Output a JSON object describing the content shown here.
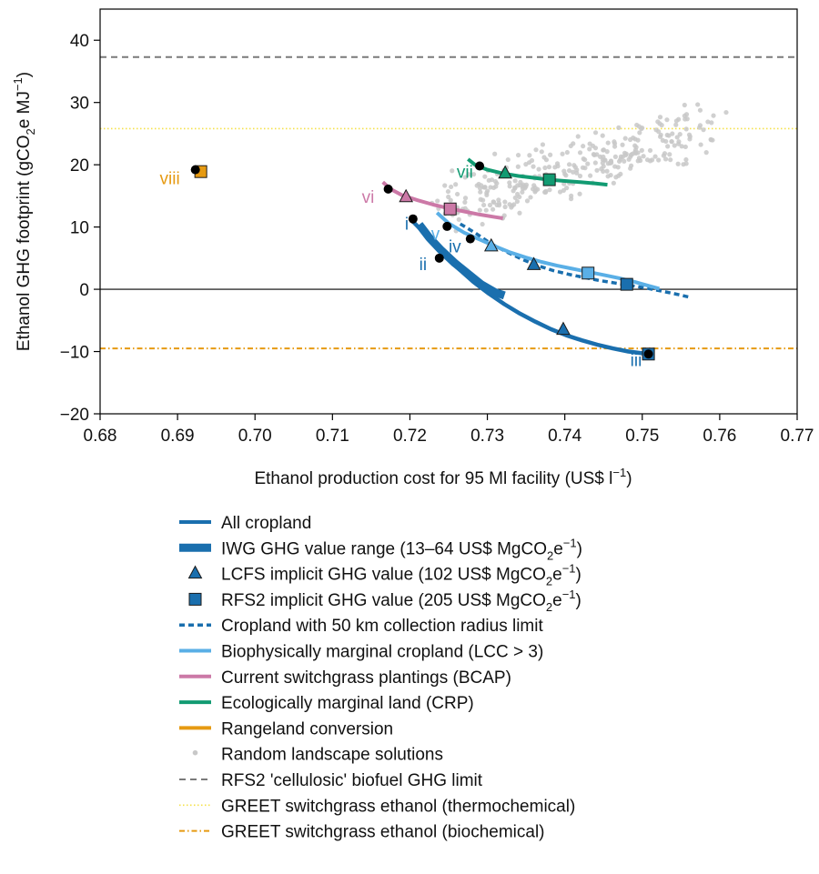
{
  "chart_data": {
    "type": "line",
    "xlabel": "Ethanol production cost for 95 Ml facility (US$ l",
    "xlabel_sup": "−1",
    "xlabel_close": ")",
    "ylabel_pre": "Ethanol GHG footprint (gCO",
    "ylabel_sub": "2",
    "ylabel_mid": "e MJ",
    "ylabel_sup": "−1",
    "ylabel_close": ")",
    "xlim": [
      0.68,
      0.77
    ],
    "ylim": [
      -20,
      45
    ],
    "xticks": [
      0.68,
      0.69,
      0.7,
      0.71,
      0.72,
      0.73,
      0.74,
      0.75,
      0.76,
      0.77
    ],
    "xtick_labels": [
      "0.68",
      "0.69",
      "0.70",
      "0.71",
      "0.72",
      "0.73",
      "0.74",
      "0.75",
      "0.76",
      "0.77"
    ],
    "yticks": [
      -20,
      -10,
      0,
      10,
      20,
      30,
      40
    ],
    "ytick_labels": [
      "−20",
      "−10",
      "0",
      "10",
      "20",
      "30",
      "40"
    ],
    "colors": {
      "cropland": "#1a6fae",
      "marginal_crop": "#5aafe6",
      "bcap": "#cc79a7",
      "crp": "#129b72",
      "rangeland": "#e69a12",
      "random": "#c8c8c8",
      "rfs2_limit": "#7a7a7a",
      "greet_thermo": "#f5e14a",
      "greet_bio": "#e69a12",
      "point": "#000000"
    },
    "reference_lines": [
      {
        "name": "RFS2 'cellulosic' biofuel GHG limit",
        "y": 37.3
      },
      {
        "name": "GREET switchgrass ethanol (thermochemical)",
        "y": 25.8
      },
      {
        "name": "GREET switchgrass ethanol (biochemical)",
        "y": -9.5
      },
      {
        "name": "zero",
        "y": 0
      }
    ],
    "series": [
      {
        "name": "All cropland",
        "x": [
          0.7203,
          0.7222,
          0.7242,
          0.7262,
          0.7282,
          0.7302,
          0.7322,
          0.7342,
          0.7362,
          0.7382,
          0.7402,
          0.7422,
          0.7442,
          0.7462,
          0.7482,
          0.7502,
          0.7508
        ],
        "y": [
          11,
          8.6,
          5.8,
          3.4,
          1.2,
          -0.7,
          -2.4,
          -3.9,
          -5.2,
          -6.4,
          -7.4,
          -8.2,
          -8.9,
          -9.5,
          -10.0,
          -10.3,
          -10.4
        ]
      },
      {
        "name": "IWG GHG value range (13–64 US$ MgCO2e−1)",
        "x": [
          0.7212,
          0.7225,
          0.724,
          0.7258,
          0.7275,
          0.7292,
          0.731,
          0.7322
        ],
        "y": [
          10.4,
          8.3,
          6.3,
          4.2,
          2.5,
          0.8,
          -0.5,
          -1.0
        ]
      },
      {
        "name": "Cropland with 50 km collection radius limit",
        "x": [
          0.7265,
          0.7285,
          0.7305,
          0.7325,
          0.7345,
          0.7365,
          0.7385,
          0.7405,
          0.7425,
          0.7445,
          0.7465,
          0.7485,
          0.7505,
          0.7525,
          0.7545,
          0.7562
        ],
        "y": [
          10.5,
          9.0,
          7.3,
          6.0,
          4.8,
          3.8,
          3.0,
          2.4,
          1.9,
          1.4,
          1.0,
          0.6,
          0.2,
          -0.3,
          -0.8,
          -1.3
        ]
      },
      {
        "name": "Biophysically marginal cropland (LCC > 3)",
        "x": [
          0.7235,
          0.725,
          0.727,
          0.729,
          0.731,
          0.733,
          0.735,
          0.737,
          0.739,
          0.741,
          0.743,
          0.745,
          0.747,
          0.749,
          0.751,
          0.7522
        ],
        "y": [
          12.3,
          10.6,
          9.1,
          8.0,
          6.9,
          5.9,
          5.1,
          4.4,
          3.8,
          3.3,
          2.8,
          2.3,
          1.8,
          1.2,
          0.5,
          0.1
        ]
      },
      {
        "name": "Current switchgrass plantings (BCAP)",
        "x": [
          0.7165,
          0.7175,
          0.719,
          0.721,
          0.723,
          0.725,
          0.727,
          0.729,
          0.731,
          0.732
        ],
        "y": [
          17.2,
          16.1,
          15.1,
          14.3,
          13.6,
          13.0,
          12.5,
          12.0,
          11.6,
          11.4
        ]
      },
      {
        "name": "Ecologically marginal land (CRP)",
        "x": [
          0.7275,
          0.7285,
          0.73,
          0.732,
          0.734,
          0.736,
          0.738,
          0.74,
          0.742,
          0.744,
          0.7455
        ],
        "y": [
          20.9,
          19.9,
          19.2,
          18.6,
          18.2,
          17.9,
          17.6,
          17.4,
          17.2,
          17.0,
          16.8
        ]
      }
    ],
    "markers": {
      "circles": [
        {
          "x": 0.6923,
          "y": 19.2
        },
        {
          "x": 0.7172,
          "y": 16.1
        },
        {
          "x": 0.7204,
          "y": 11.3
        },
        {
          "x": 0.7238,
          "y": 5.0
        },
        {
          "x": 0.7248,
          "y": 10.1
        },
        {
          "x": 0.7278,
          "y": 8.1
        },
        {
          "x": 0.729,
          "y": 19.8
        },
        {
          "x": 0.7508,
          "y": -10.4
        }
      ],
      "triangles": [
        {
          "x": 0.7195,
          "y": 14.8,
          "color": "bcap"
        },
        {
          "x": 0.7323,
          "y": 18.6,
          "color": "crp"
        },
        {
          "x": 0.7305,
          "y": 6.9,
          "color": "marginal_crop"
        },
        {
          "x": 0.736,
          "y": 3.9,
          "color": "cropland"
        },
        {
          "x": 0.7398,
          "y": -6.5,
          "color": "cropland"
        }
      ],
      "squares": [
        {
          "x": 0.693,
          "y": 18.9,
          "color": "rangeland"
        },
        {
          "x": 0.7252,
          "y": 12.9,
          "color": "bcap"
        },
        {
          "x": 0.738,
          "y": 17.6,
          "color": "crp"
        },
        {
          "x": 0.743,
          "y": 2.6,
          "color": "marginal_crop"
        },
        {
          "x": 0.748,
          "y": 0.8,
          "color": "cropland"
        },
        {
          "x": 0.7508,
          "y": -10.4,
          "color": "cropland"
        }
      ]
    },
    "annotations": [
      {
        "text": "i",
        "x": 0.7196,
        "y": 9.6,
        "color": "cropland"
      },
      {
        "text": "ii",
        "x": 0.7217,
        "y": 3.1,
        "color": "cropland"
      },
      {
        "text": "iii",
        "x": 0.7492,
        "y": -12.3,
        "color": "cropland"
      },
      {
        "text": "iv",
        "x": 0.7258,
        "y": 5.9,
        "color": "cropland"
      },
      {
        "text": "v",
        "x": 0.7233,
        "y": 8.0,
        "color": "marginal_crop"
      },
      {
        "text": "vi",
        "x": 0.7146,
        "y": 13.9,
        "color": "bcap"
      },
      {
        "text": "vii",
        "x": 0.7271,
        "y": 17.9,
        "color": "crp"
      },
      {
        "text": "viii",
        "x": 0.689,
        "y": 16.9,
        "color": "rangeland"
      }
    ],
    "random_cloud": {
      "name": "Random landscape solutions",
      "count": 320,
      "seed": 11
    },
    "legend": [
      {
        "label_pre": "All cropland",
        "kind": "line",
        "color": "cropland"
      },
      {
        "label_pre": "IWG GHG value range (13–64 US$ MgCO",
        "label_sub": "2",
        "label_mid": "e",
        "label_sup": "−1",
        "label_post": ")",
        "kind": "thick",
        "color": "cropland"
      },
      {
        "label_pre": "LCFS implicit GHG value (102 US$ MgCO",
        "label_sub": "2",
        "label_mid": "e",
        "label_sup": "−1",
        "label_post": ")",
        "kind": "triangle",
        "color": "cropland"
      },
      {
        "label_pre": "RFS2 implicit GHG value (205 US$ MgCO",
        "label_sub": "2",
        "label_mid": "e",
        "label_sup": "−1",
        "label_post": ")",
        "kind": "square",
        "color": "cropland"
      },
      {
        "label_pre": "Cropland with 50 km collection radius limit",
        "kind": "dotted",
        "color": "cropland"
      },
      {
        "label_pre": "Biophysically marginal cropland (LCC > 3)",
        "kind": "line",
        "color": "marginal_crop"
      },
      {
        "label_pre": "Current switchgrass plantings (BCAP)",
        "kind": "line",
        "color": "bcap"
      },
      {
        "label_pre": "Ecologically marginal land (CRP)",
        "kind": "line",
        "color": "crp"
      },
      {
        "label_pre": "Rangeland conversion",
        "kind": "line",
        "color": "rangeland"
      },
      {
        "label_pre": "Random landscape solutions",
        "kind": "dot",
        "color": "random"
      },
      {
        "label_pre": "RFS2 'cellulosic' biofuel GHG limit",
        "kind": "dashed",
        "color": "rfs2_limit"
      },
      {
        "label_pre": "GREET switchgrass ethanol (thermochemical)",
        "kind": "finedot",
        "color": "greet_thermo"
      },
      {
        "label_pre": "GREET switchgrass ethanol (biochemical)",
        "kind": "dashdot",
        "color": "greet_bio"
      }
    ]
  }
}
